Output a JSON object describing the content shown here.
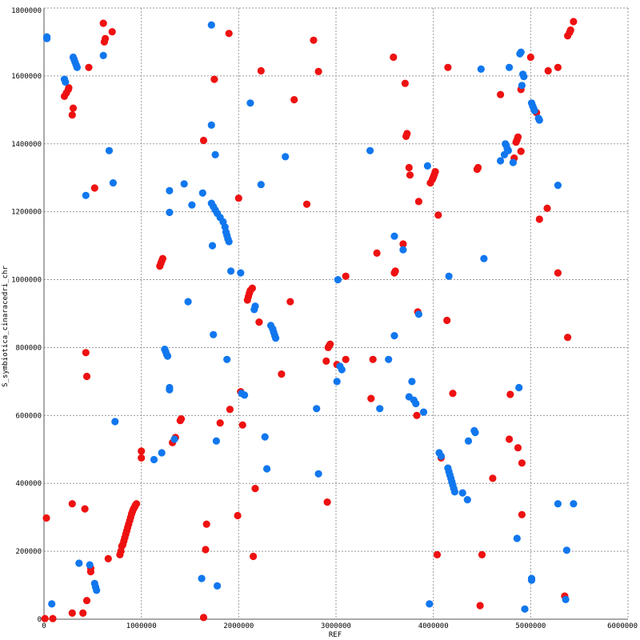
{
  "chart_data": {
    "type": "scatter",
    "xlabel": "REF",
    "ylabel": "S_symbiotica_cinaracedri_chr",
    "xlim": [
      0,
      6000000
    ],
    "ylim": [
      0,
      1800000
    ],
    "x_ticks": [
      0,
      1000000,
      2000000,
      3000000,
      4000000,
      5000000,
      6000000
    ],
    "y_ticks": [
      0,
      200000,
      400000,
      600000,
      800000,
      1000000,
      1200000,
      1400000,
      1600000,
      1800000
    ],
    "grid": true,
    "legend": "none",
    "series": [
      {
        "color": "#ee1111",
        "points": [
          [
            10000,
            2000
          ],
          [
            25000,
            298000
          ],
          [
            90000,
            2000
          ],
          [
            290000,
            18000
          ],
          [
            290000,
            340000
          ],
          [
            290000,
            1485000
          ],
          [
            300000,
            1505000
          ],
          [
            400000,
            18000
          ],
          [
            420000,
            325000
          ],
          [
            430000,
            785000
          ],
          [
            440000,
            55000
          ],
          [
            440000,
            715000
          ],
          [
            460000,
            1625000
          ],
          [
            480000,
            140000
          ],
          [
            480000,
            150000
          ],
          [
            520000,
            1270000
          ],
          [
            210000,
            1540000
          ],
          [
            230000,
            1550000
          ],
          [
            250000,
            1560000
          ],
          [
            255000,
            1565000
          ],
          [
            610000,
            1755000
          ],
          [
            620000,
            1700000
          ],
          [
            630000,
            1710000
          ],
          [
            700000,
            1730000
          ],
          [
            660000,
            178000
          ],
          [
            780000,
            190000
          ],
          [
            790000,
            200000
          ],
          [
            800000,
            215000
          ],
          [
            810000,
            220000
          ],
          [
            820000,
            230000
          ],
          [
            830000,
            240000
          ],
          [
            840000,
            250000
          ],
          [
            850000,
            260000
          ],
          [
            860000,
            270000
          ],
          [
            870000,
            280000
          ],
          [
            880000,
            290000
          ],
          [
            890000,
            300000
          ],
          [
            900000,
            310000
          ],
          [
            910000,
            318000
          ],
          [
            920000,
            325000
          ],
          [
            930000,
            330000
          ],
          [
            940000,
            336000
          ],
          [
            950000,
            340000
          ],
          [
            1000000,
            475000
          ],
          [
            1000000,
            495000
          ],
          [
            1190000,
            1040000
          ],
          [
            1200000,
            1048000
          ],
          [
            1210000,
            1055000
          ],
          [
            1220000,
            1062000
          ],
          [
            1320000,
            520000
          ],
          [
            1350000,
            535000
          ],
          [
            1400000,
            585000
          ],
          [
            1410000,
            590000
          ],
          [
            1640000,
            5000
          ],
          [
            1640000,
            1410000
          ],
          [
            1660000,
            205000
          ],
          [
            1670000,
            280000
          ],
          [
            1750000,
            1590000
          ],
          [
            1810000,
            578000
          ],
          [
            1900000,
            1725000
          ],
          [
            1910000,
            618000
          ],
          [
            1990000,
            305000
          ],
          [
            2000000,
            1240000
          ],
          [
            2020000,
            670000
          ],
          [
            2040000,
            572000
          ],
          [
            2090000,
            940000
          ],
          [
            2100000,
            950000
          ],
          [
            2110000,
            960000
          ],
          [
            2120000,
            968000
          ],
          [
            2140000,
            975000
          ],
          [
            2150000,
            185000
          ],
          [
            2170000,
            385000
          ],
          [
            2210000,
            875000
          ],
          [
            2230000,
            1615000
          ],
          [
            2440000,
            722000
          ],
          [
            2530000,
            935000
          ],
          [
            2570000,
            1530000
          ],
          [
            2700000,
            1222000
          ],
          [
            2770000,
            1705000
          ],
          [
            2820000,
            1613000
          ],
          [
            2900000,
            760000
          ],
          [
            2910000,
            345000
          ],
          [
            2920000,
            800000
          ],
          [
            2930000,
            805000
          ],
          [
            2940000,
            810000
          ],
          [
            3010000,
            750000
          ],
          [
            3100000,
            765000
          ],
          [
            3100000,
            1010000
          ],
          [
            3360000,
            650000
          ],
          [
            3380000,
            765000
          ],
          [
            3420000,
            1078000
          ],
          [
            3590000,
            1655000
          ],
          [
            3600000,
            1020000
          ],
          [
            3610000,
            1025000
          ],
          [
            3690000,
            1105000
          ],
          [
            3710000,
            1578000
          ],
          [
            3720000,
            1422000
          ],
          [
            3730000,
            1430000
          ],
          [
            3750000,
            1330000
          ],
          [
            3760000,
            1308000
          ],
          [
            3830000,
            600000
          ],
          [
            3840000,
            905000
          ],
          [
            3850000,
            1230000
          ],
          [
            3970000,
            1285000
          ],
          [
            3990000,
            1295000
          ],
          [
            4000000,
            1302000
          ],
          [
            4010000,
            1310000
          ],
          [
            4020000,
            1318000
          ],
          [
            4040000,
            190000
          ],
          [
            4050000,
            1190000
          ],
          [
            4080000,
            475000
          ],
          [
            4140000,
            880000
          ],
          [
            4150000,
            1625000
          ],
          [
            4200000,
            665000
          ],
          [
            4450000,
            1325000
          ],
          [
            4460000,
            1330000
          ],
          [
            4480000,
            40000
          ],
          [
            4500000,
            190000
          ],
          [
            4610000,
            415000
          ],
          [
            4690000,
            1545000
          ],
          [
            4780000,
            530000
          ],
          [
            4790000,
            662000
          ],
          [
            4830000,
            1358000
          ],
          [
            4850000,
            1405000
          ],
          [
            4860000,
            1412000
          ],
          [
            4870000,
            1420000
          ],
          [
            4870000,
            505000
          ],
          [
            4900000,
            1560000
          ],
          [
            4900000,
            1378000
          ],
          [
            4910000,
            460000
          ],
          [
            4910000,
            308000
          ],
          [
            5000000,
            1655000
          ],
          [
            5060000,
            1492000
          ],
          [
            5090000,
            1178000
          ],
          [
            5170000,
            1210000
          ],
          [
            5180000,
            1615000
          ],
          [
            5280000,
            1625000
          ],
          [
            5280000,
            1020000
          ],
          [
            5350000,
            68000
          ],
          [
            5380000,
            830000
          ],
          [
            5380000,
            1718000
          ],
          [
            5400000,
            1728000
          ],
          [
            5410000,
            1735000
          ],
          [
            5440000,
            1760000
          ]
        ]
      },
      {
        "color": "#1177ee",
        "points": [
          [
            30000,
            1710000
          ],
          [
            30000,
            1715000
          ],
          [
            80000,
            45000
          ],
          [
            210000,
            1590000
          ],
          [
            220000,
            1582000
          ],
          [
            300000,
            1655000
          ],
          [
            310000,
            1648000
          ],
          [
            320000,
            1640000
          ],
          [
            330000,
            1632000
          ],
          [
            340000,
            1625000
          ],
          [
            360000,
            165000
          ],
          [
            430000,
            1248000
          ],
          [
            470000,
            160000
          ],
          [
            520000,
            105000
          ],
          [
            530000,
            95000
          ],
          [
            540000,
            85000
          ],
          [
            610000,
            1660000
          ],
          [
            670000,
            1380000
          ],
          [
            710000,
            1285000
          ],
          [
            730000,
            582000
          ],
          [
            1130000,
            470000
          ],
          [
            1210000,
            490000
          ],
          [
            1240000,
            795000
          ],
          [
            1250000,
            788000
          ],
          [
            1260000,
            780000
          ],
          [
            1270000,
            775000
          ],
          [
            1290000,
            1198000
          ],
          [
            1290000,
            1262000
          ],
          [
            1290000,
            682000
          ],
          [
            1290000,
            676000
          ],
          [
            1340000,
            530000
          ],
          [
            1440000,
            1282000
          ],
          [
            1480000,
            935000
          ],
          [
            1520000,
            1220000
          ],
          [
            1620000,
            120000
          ],
          [
            1630000,
            1255000
          ],
          [
            1720000,
            1750000
          ],
          [
            1720000,
            1455000
          ],
          [
            1730000,
            1100000
          ],
          [
            1740000,
            838000
          ],
          [
            1760000,
            1368000
          ],
          [
            1770000,
            525000
          ],
          [
            1780000,
            98000
          ],
          [
            1720000,
            1225000
          ],
          [
            1740000,
            1215000
          ],
          [
            1760000,
            1205000
          ],
          [
            1780000,
            1195000
          ],
          [
            1810000,
            1183000
          ],
          [
            1840000,
            1170000
          ],
          [
            1860000,
            1155000
          ],
          [
            1870000,
            1140000
          ],
          [
            1880000,
            1130000
          ],
          [
            1890000,
            1120000
          ],
          [
            1900000,
            1112000
          ],
          [
            1880000,
            765000
          ],
          [
            1920000,
            1025000
          ],
          [
            2020000,
            1020000
          ],
          [
            2030000,
            665000
          ],
          [
            2060000,
            660000
          ],
          [
            2120000,
            1520000
          ],
          [
            2160000,
            912000
          ],
          [
            2170000,
            922000
          ],
          [
            2230000,
            1280000
          ],
          [
            2270000,
            537000
          ],
          [
            2290000,
            443000
          ],
          [
            2330000,
            865000
          ],
          [
            2350000,
            855000
          ],
          [
            2360000,
            845000
          ],
          [
            2370000,
            836000
          ],
          [
            2380000,
            828000
          ],
          [
            2480000,
            1362000
          ],
          [
            2800000,
            620000
          ],
          [
            2820000,
            428000
          ],
          [
            3010000,
            700000
          ],
          [
            3020000,
            1000000
          ],
          [
            3040000,
            745000
          ],
          [
            3060000,
            735000
          ],
          [
            3350000,
            1380000
          ],
          [
            3450000,
            620000
          ],
          [
            3540000,
            765000
          ],
          [
            3600000,
            1128000
          ],
          [
            3600000,
            835000
          ],
          [
            3690000,
            1088000
          ],
          [
            3750000,
            655000
          ],
          [
            3780000,
            700000
          ],
          [
            3800000,
            645000
          ],
          [
            3820000,
            635000
          ],
          [
            3850000,
            898000
          ],
          [
            3900000,
            610000
          ],
          [
            3940000,
            1335000
          ],
          [
            3960000,
            45000
          ],
          [
            4060000,
            490000
          ],
          [
            4080000,
            480000
          ],
          [
            4150000,
            445000
          ],
          [
            4160000,
            435000
          ],
          [
            4170000,
            425000
          ],
          [
            4180000,
            415000
          ],
          [
            4190000,
            405000
          ],
          [
            4200000,
            395000
          ],
          [
            4210000,
            385000
          ],
          [
            4220000,
            375000
          ],
          [
            4300000,
            372000
          ],
          [
            4350000,
            352000
          ],
          [
            4160000,
            1010000
          ],
          [
            4360000,
            525000
          ],
          [
            4420000,
            555000
          ],
          [
            4430000,
            550000
          ],
          [
            4490000,
            1620000
          ],
          [
            4520000,
            1062000
          ],
          [
            4690000,
            1350000
          ],
          [
            4730000,
            1368000
          ],
          [
            4740000,
            1400000
          ],
          [
            4750000,
            1395000
          ],
          [
            4760000,
            1385000
          ],
          [
            4770000,
            1380000
          ],
          [
            4780000,
            1625000
          ],
          [
            4820000,
            1345000
          ],
          [
            4860000,
            238000
          ],
          [
            4880000,
            682000
          ],
          [
            4890000,
            1665000
          ],
          [
            4900000,
            1670000
          ],
          [
            4910000,
            1572000
          ],
          [
            4920000,
            1605000
          ],
          [
            4930000,
            1598000
          ],
          [
            4940000,
            30000
          ],
          [
            5010000,
            1520000
          ],
          [
            5020000,
            1512000
          ],
          [
            5030000,
            1505000
          ],
          [
            5040000,
            1498000
          ],
          [
            5080000,
            1475000
          ],
          [
            5090000,
            1470000
          ],
          [
            5010000,
            120000
          ],
          [
            5010000,
            115000
          ],
          [
            5280000,
            340000
          ],
          [
            5280000,
            1278000
          ],
          [
            5360000,
            58000
          ],
          [
            5370000,
            203000
          ],
          [
            5440000,
            340000
          ]
        ]
      }
    ]
  }
}
